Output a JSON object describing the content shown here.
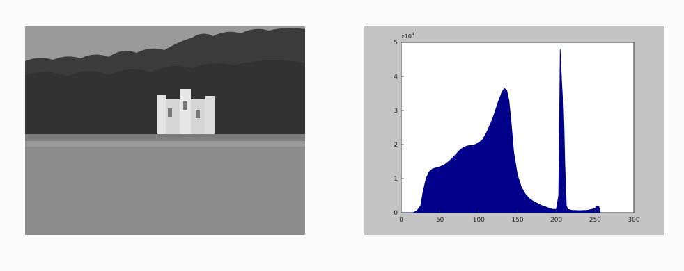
{
  "photo": {
    "subject": "grayscale photograph of a castle-like building on a lakeshore with trees"
  },
  "chart_data": {
    "type": "area",
    "title": "",
    "xlabel": "",
    "ylabel": "",
    "xlim": [
      0,
      300
    ],
    "ylim": [
      0,
      5
    ],
    "y_multiplier": "x10",
    "y_multiplier_exp": "4",
    "xticks": [
      "0",
      "50",
      "100",
      "150",
      "200",
      "250",
      "300"
    ],
    "yticks": [
      "0",
      "1",
      "2",
      "3",
      "4",
      "5"
    ],
    "grid": false,
    "fill_color": "#00008b",
    "series": [
      {
        "x": [
          0,
          15,
          20,
          25,
          28,
          32,
          36,
          40,
          45,
          50,
          55,
          60,
          65,
          70,
          75,
          80,
          85,
          90,
          95,
          100,
          105,
          110,
          115,
          120,
          125,
          130,
          133,
          136,
          139,
          142,
          145,
          150,
          155,
          160,
          165,
          170,
          175,
          180,
          185,
          190,
          195,
          200,
          203,
          204,
          205,
          206,
          207,
          208,
          209,
          210,
          211,
          212,
          213,
          215,
          220,
          230,
          240,
          250,
          252,
          255,
          256,
          257
        ],
        "values": [
          0,
          0,
          0.05,
          0.2,
          0.6,
          1.0,
          1.2,
          1.28,
          1.32,
          1.35,
          1.4,
          1.48,
          1.58,
          1.7,
          1.82,
          1.92,
          1.96,
          1.98,
          2.0,
          2.05,
          2.15,
          2.35,
          2.6,
          2.9,
          3.25,
          3.55,
          3.65,
          3.6,
          3.3,
          2.6,
          1.8,
          1.1,
          0.75,
          0.55,
          0.42,
          0.34,
          0.28,
          0.22,
          0.18,
          0.14,
          0.1,
          0.1,
          0.5,
          2.5,
          4.8,
          4.3,
          3.8,
          3.4,
          3.2,
          2.5,
          1.5,
          0.8,
          0.2,
          0.1,
          0.07,
          0.06,
          0.07,
          0.12,
          0.2,
          0.18,
          0.05,
          0
        ]
      }
    ]
  }
}
